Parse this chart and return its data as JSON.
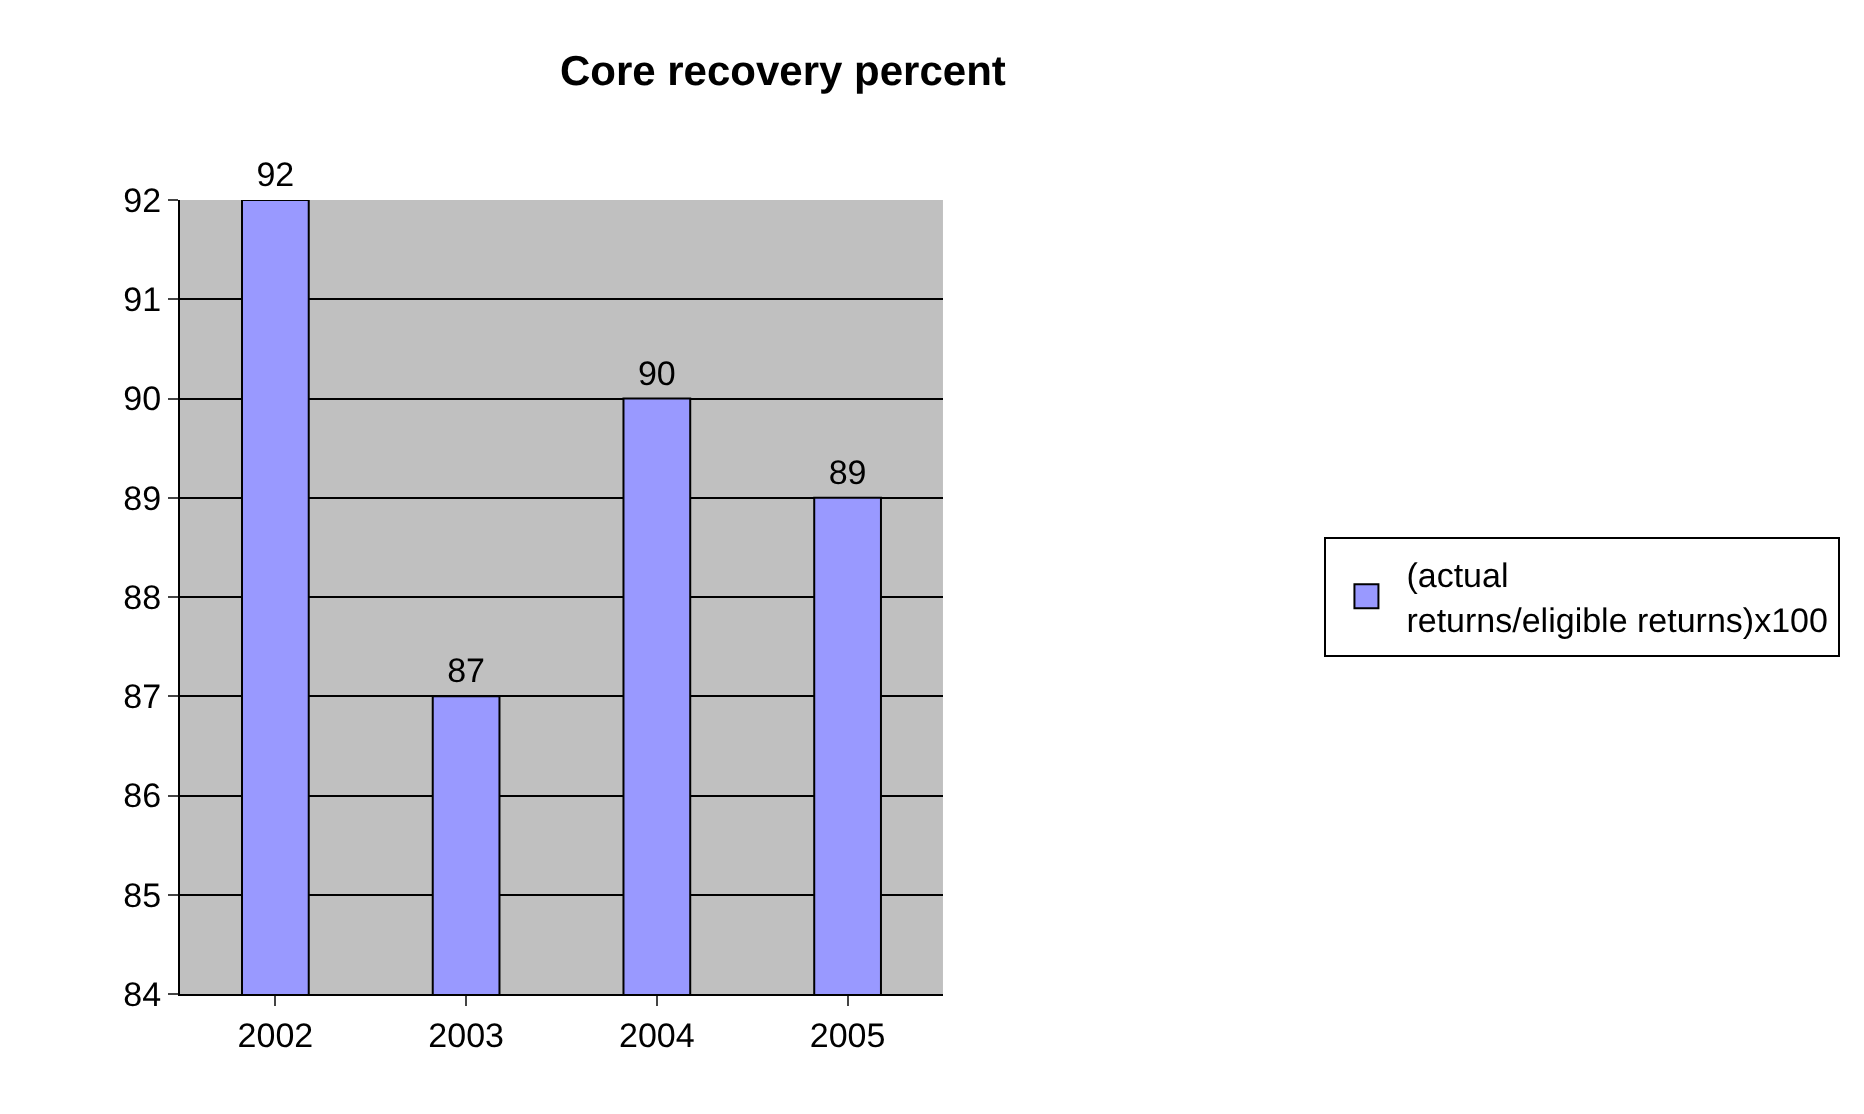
{
  "chart_data": {
    "type": "bar",
    "title": "Core recovery percent",
    "categories": [
      "2002",
      "2003",
      "2004",
      "2005"
    ],
    "series": [
      {
        "name": "(actual returns/eligible returns)x100",
        "color": "#9999ff",
        "values": [
          92,
          87,
          90,
          89
        ]
      }
    ],
    "ylim": [
      84,
      92
    ],
    "yticks": [
      84,
      85,
      86,
      87,
      88,
      89,
      90,
      91,
      92
    ],
    "grid": "y",
    "legend": "right",
    "data_labels": true
  }
}
